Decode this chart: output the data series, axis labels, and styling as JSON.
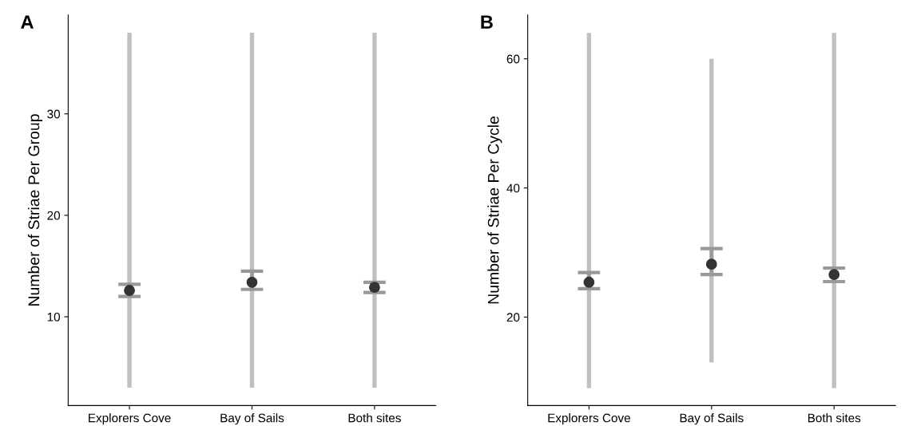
{
  "chart_data": [
    {
      "type": "scatter",
      "title": "A",
      "ylabel": "Number of Striae Per Group",
      "categories": [
        "Explorers Cove",
        "Bay of Sails",
        "Both sites"
      ],
      "ylim": [
        1.25,
        39.75
      ],
      "yticks": [
        10,
        20,
        30
      ],
      "grid": false,
      "legend": false,
      "marker": "circle",
      "series": [
        {
          "type": "bar",
          "color": "#c0c0c0",
          "base": [
            3.0,
            3.0,
            3.0
          ],
          "values": [
            35.0,
            35.0,
            35.0
          ]
        },
        {
          "color": "#333333",
          "values": [
            12.6,
            13.4,
            12.9
          ],
          "errors": [
            [
              12.0,
              13.2
            ],
            [
              12.7,
              14.5
            ],
            [
              12.4,
              13.4
            ]
          ]
        }
      ]
    },
    {
      "type": "scatter",
      "title": "B",
      "ylabel": "Number of Striae Per Cycle",
      "categories": [
        "Explorers Cove",
        "Bay of Sails",
        "Both sites"
      ],
      "ylim": [
        6.3,
        66.8
      ],
      "yticks": [
        20,
        40,
        60
      ],
      "grid": false,
      "legend": false,
      "marker": "circle",
      "series": [
        {
          "type": "bar",
          "color": "#c0c0c0",
          "base": [
            9,
            13,
            9
          ],
          "values": [
            55,
            47,
            55
          ]
        },
        {
          "color": "#333333",
          "values": [
            25.4,
            28.2,
            26.6
          ],
          "errors": [
            [
              24.4,
              26.9
            ],
            [
              26.6,
              30.6
            ],
            [
              25.5,
              27.6
            ]
          ]
        }
      ]
    }
  ]
}
